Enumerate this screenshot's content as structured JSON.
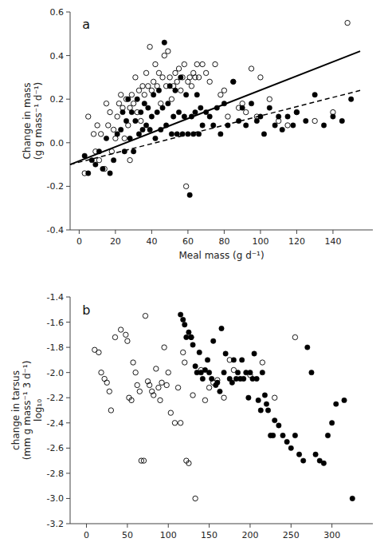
{
  "chart_data": [
    {
      "type": "scatter",
      "title": "a",
      "xlabel": "Meal mass (g d⁻¹)",
      "ylabel": "Change in mass\n(g g mass⁻¹ d⁻¹)",
      "xlim": [
        -5,
        162
      ],
      "ylim": [
        -0.4,
        0.6
      ],
      "xticks": [
        0,
        20,
        40,
        60,
        80,
        100,
        120,
        140
      ],
      "yticks": [
        -0.4,
        -0.2,
        {
          "value": 0,
          "label": "0.0"
        },
        0.2,
        0.4,
        0.6
      ],
      "series": [
        {
          "type": "scatter",
          "marker": "circle-open",
          "color": "black",
          "x": [
            3,
            5,
            8,
            9,
            10,
            11,
            12,
            14,
            15,
            16,
            17,
            18,
            19,
            20,
            21,
            22,
            23,
            24,
            25,
            26,
            27,
            28,
            28,
            29,
            30,
            31,
            32,
            33,
            34,
            35,
            36,
            37,
            38,
            39,
            40,
            41,
            42,
            43,
            44,
            45,
            46,
            47,
            48,
            49,
            50,
            51,
            52,
            53,
            54,
            55,
            56,
            57,
            58,
            59,
            60,
            61,
            62,
            63,
            64,
            65,
            66,
            68,
            70,
            72,
            75,
            78,
            80,
            82,
            85,
            88,
            90,
            92,
            95,
            98,
            100,
            105,
            110,
            115,
            120,
            130,
            140,
            148
          ],
          "values": [
            -0.14,
            0.12,
            0.04,
            -0.04,
            0.08,
            -0.08,
            0.04,
            -0.12,
            0.18,
            0.08,
            0.14,
            -0.04,
            0.06,
            0.02,
            0.12,
            0.18,
            0.22,
            0.16,
            0.02,
            0.2,
            0.08,
            0.16,
            -0.08,
            0.22,
            0.18,
            0.3,
            0.14,
            0.24,
            0.1,
            0.26,
            0.22,
            0.32,
            0.26,
            0.44,
            0.24,
            0.28,
            0.36,
            0.26,
            0.32,
            0.18,
            0.3,
            0.4,
            0.26,
            0.42,
            0.3,
            0.2,
            0.26,
            0.32,
            0.28,
            0.34,
            0.24,
            0.3,
            0.36,
            -0.2,
            0.28,
            0.3,
            0.26,
            0.32,
            0.3,
            0.36,
            0.3,
            0.36,
            0.32,
            0.28,
            0.36,
            0.22,
            0.24,
            0.12,
            0.28,
            0.16,
            0.18,
            0.14,
            0.34,
            0.12,
            0.3,
            0.2,
            0.1,
            0.08,
            0.14,
            0.1,
            0.14,
            0.55
          ]
        },
        {
          "type": "scatter",
          "marker": "circle",
          "color": "black",
          "x": [
            3,
            5,
            7,
            9,
            11,
            13,
            15,
            17,
            19,
            21,
            23,
            24,
            25,
            26,
            27,
            28,
            29,
            30,
            31,
            32,
            33,
            34,
            35,
            36,
            37,
            38,
            39,
            40,
            41,
            42,
            43,
            44,
            45,
            46,
            47,
            48,
            49,
            50,
            51,
            52,
            53,
            54,
            55,
            56,
            57,
            58,
            59,
            60,
            61,
            62,
            63,
            64,
            65,
            66,
            67,
            68,
            70,
            72,
            74,
            76,
            78,
            80,
            82,
            85,
            88,
            90,
            92,
            95,
            98,
            100,
            102,
            105,
            108,
            110,
            112,
            115,
            118,
            120,
            125,
            130,
            135,
            140,
            145,
            150
          ],
          "values": [
            -0.06,
            -0.14,
            -0.08,
            -0.1,
            -0.04,
            -0.12,
            0.02,
            -0.14,
            -0.08,
            0.04,
            0.06,
            0.14,
            -0.04,
            0.1,
            0.2,
            0.02,
            0.14,
            -0.04,
            0.1,
            0.2,
            0.04,
            0.14,
            0.06,
            0.18,
            0.08,
            0.16,
            0.06,
            0.12,
            0.22,
            0.02,
            0.14,
            0.24,
            0.06,
            0.16,
            0.46,
            0.08,
            0.18,
            0.26,
            0.04,
            0.12,
            0.24,
            0.04,
            0.14,
            0.3,
            0.04,
            0.12,
            0.22,
            0.04,
            -0.24,
            0.12,
            0.04,
            0.14,
            0.22,
            0.04,
            0.16,
            0.08,
            0.14,
            0.12,
            0.08,
            0.16,
            0.04,
            0.18,
            0.08,
            0.28,
            0.1,
            0.16,
            0.08,
            0.18,
            0.1,
            0.12,
            0.04,
            0.16,
            0.08,
            0.12,
            0.06,
            0.12,
            0.08,
            0.14,
            0.1,
            0.22,
            0.08,
            0.12,
            0.1,
            0.2
          ]
        },
        {
          "type": "line",
          "line_style": "solid",
          "color": "black",
          "x": [
            -5,
            155
          ],
          "values": [
            -0.1,
            0.42
          ]
        },
        {
          "type": "line",
          "line_style": "dashed",
          "color": "black",
          "x": [
            -5,
            155
          ],
          "values": [
            -0.1,
            0.24
          ]
        }
      ]
    },
    {
      "type": "scatter",
      "title": "b",
      "ylabel": "change in tarsus\n(mm g mass⁻¹ 3 d⁻¹)\nlog₁₀",
      "xlim": [
        -20,
        350
      ],
      "ylim": [
        -3.2,
        -1.4
      ],
      "xticks": [
        0,
        50,
        100,
        150,
        200,
        250,
        300
      ],
      "yticks": [
        -3.2,
        {
          "value": -3.0,
          "label": "-3.0"
        },
        -2.8,
        -2.6,
        -2.4,
        -2.2,
        {
          "value": -2.0,
          "label": "-2.0"
        },
        -1.8,
        -1.6,
        -1.4
      ],
      "series": [
        {
          "type": "scatter",
          "marker": "circle-open",
          "color": "black",
          "x": [
            10,
            15,
            18,
            22,
            25,
            28,
            30,
            35,
            42,
            48,
            50,
            52,
            55,
            57,
            60,
            62,
            65,
            67,
            70,
            72,
            75,
            77,
            80,
            82,
            85,
            88,
            90,
            92,
            95,
            98,
            100,
            103,
            108,
            112,
            115,
            118,
            120,
            122,
            125,
            128,
            130,
            133,
            140,
            145,
            150,
            155,
            160,
            168,
            175,
            180,
            200,
            215,
            230,
            255
          ],
          "values": [
            -1.82,
            -1.84,
            -2.0,
            -2.05,
            -2.08,
            -2.15,
            -2.3,
            -1.72,
            -1.66,
            -1.7,
            -1.75,
            -2.2,
            -2.22,
            -1.92,
            -2.0,
            -2.1,
            -2.15,
            -2.7,
            -2.7,
            -1.55,
            -2.07,
            -2.1,
            -2.15,
            -2.18,
            -1.97,
            -2.12,
            -2.22,
            -2.08,
            -1.8,
            -2.1,
            -2.0,
            -2.32,
            -2.4,
            -2.12,
            -2.4,
            -1.84,
            -1.92,
            -2.7,
            -2.72,
            -1.72,
            -2.18,
            -3.0,
            -1.98,
            -2.22,
            -2.12,
            -2.08,
            -2.06,
            -2.2,
            -1.9,
            -1.98,
            -2.02,
            -1.92,
            -2.2,
            -1.72
          ]
        },
        {
          "type": "scatter",
          "marker": "circle",
          "color": "black",
          "x": [
            115,
            118,
            120,
            122,
            125,
            128,
            130,
            133,
            135,
            138,
            140,
            142,
            145,
            148,
            150,
            153,
            155,
            158,
            160,
            163,
            165,
            168,
            170,
            175,
            178,
            180,
            183,
            185,
            188,
            190,
            192,
            195,
            198,
            200,
            203,
            205,
            208,
            210,
            213,
            215,
            218,
            220,
            222,
            225,
            228,
            230,
            235,
            240,
            245,
            250,
            255,
            260,
            265,
            270,
            275,
            280,
            285,
            290,
            295,
            300,
            305,
            315,
            325
          ],
          "values": [
            -1.54,
            -1.58,
            -1.62,
            -1.72,
            -1.68,
            -1.72,
            -1.78,
            -1.95,
            -2.0,
            -1.84,
            -2.0,
            -2.05,
            -1.98,
            -1.9,
            -2.0,
            -2.05,
            -1.75,
            -2.1,
            -2.08,
            -2.15,
            -1.65,
            -2.0,
            -1.85,
            -2.05,
            -2.08,
            -1.9,
            -2.05,
            -2.0,
            -2.05,
            -1.9,
            -2.05,
            -2.0,
            -2.2,
            -2.0,
            -2.05,
            -1.85,
            -2.05,
            -2.22,
            -2.3,
            -2.0,
            -2.18,
            -2.25,
            -2.3,
            -2.5,
            -2.5,
            -2.38,
            -2.42,
            -2.5,
            -2.55,
            -2.6,
            -2.5,
            -2.65,
            -2.7,
            -1.8,
            -2.0,
            -2.65,
            -2.7,
            -2.72,
            -2.5,
            -2.4,
            -2.25,
            -2.22,
            -3.0
          ]
        }
      ]
    }
  ]
}
